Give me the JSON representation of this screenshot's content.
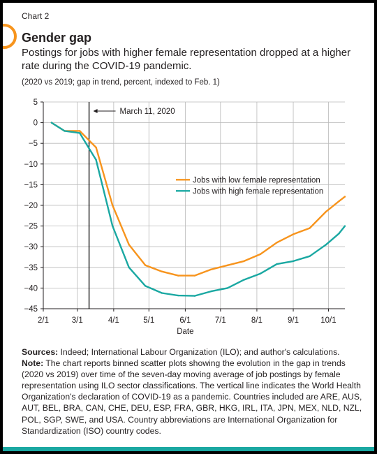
{
  "header": {
    "label": "Chart 2",
    "title": "Gender gap",
    "subtitle": "Postings for jobs with higher female representation dropped at a higher rate during the COVID-19 pandemic.",
    "unit": "(2020 vs 2019; gap in trend, percent, indexed to Feb. 1)"
  },
  "colors": {
    "low": "#f7941d",
    "high": "#1aa8a2",
    "accent_bar": "#1aa8a2"
  },
  "notes": {
    "sources_label": "Sources:",
    "sources_text": "Indeed; International Labour Organization (ILO); and author's calculations.",
    "note_label": "Note:",
    "note_text": "The chart reports binned scatter plots showing the evolution in the gap in trends (2020 vs 2019) over time of the seven-day moving average of job postings by female representation using ILO sector classifications. The vertical line indicates the World Health Organization's declaration of COVID-19 as a pandemic. Countries included are ARE, AUS, AUT, BEL, BRA, CAN, CHE, DEU, ESP, FRA, GBR, HKG, IRL, ITA, JPN, MEX, NLD, NZL, POL, SGP, SWE, and USA. Country abbreviations are International Organization for Standardization (ISO) country codes."
  },
  "chart_data": {
    "type": "line",
    "title": "Gender gap",
    "xlabel": "Date",
    "ylabel": "",
    "x_ticks": [
      {
        "date": "2020-02-01",
        "label": "2/1"
      },
      {
        "date": "2020-03-01",
        "label": "3/1"
      },
      {
        "date": "2020-04-01",
        "label": "4/1"
      },
      {
        "date": "2020-05-01",
        "label": "5/1"
      },
      {
        "date": "2020-06-01",
        "label": "6/1"
      },
      {
        "date": "2020-07-01",
        "label": "7/1"
      },
      {
        "date": "2020-08-01",
        "label": "8/1"
      },
      {
        "date": "2020-09-01",
        "label": "9/1"
      },
      {
        "date": "2020-10-01",
        "label": "10/1"
      }
    ],
    "xlim": [
      "2020-02-01",
      "2020-10-15"
    ],
    "ylim": [
      -45,
      5
    ],
    "y_ticks": [
      5,
      0,
      -5,
      -10,
      -15,
      -20,
      -25,
      -30,
      -35,
      -40,
      -45
    ],
    "grid": true,
    "legend_position": "center-right",
    "annotation": {
      "date": "2020-03-11",
      "label": "March 11, 2020"
    },
    "series": [
      {
        "name": "Jobs with low female representation",
        "color": "#f7941d",
        "points": [
          [
            "2020-02-08",
            0
          ],
          [
            "2020-02-19",
            -2
          ],
          [
            "2020-03-03",
            -2
          ],
          [
            "2020-03-17",
            -6
          ],
          [
            "2020-03-31",
            -20
          ],
          [
            "2020-04-14",
            -29.5
          ],
          [
            "2020-04-28",
            -34.5
          ],
          [
            "2020-05-12",
            -36
          ],
          [
            "2020-05-26",
            -37
          ],
          [
            "2020-06-09",
            -37
          ],
          [
            "2020-06-23",
            -35.5
          ],
          [
            "2020-07-07",
            -34.5
          ],
          [
            "2020-07-21",
            -33.5
          ],
          [
            "2020-08-04",
            -31.8
          ],
          [
            "2020-08-18",
            -29
          ],
          [
            "2020-09-01",
            -27
          ],
          [
            "2020-09-15",
            -25.5
          ],
          [
            "2020-09-29",
            -21.5
          ],
          [
            "2020-10-10",
            -19
          ],
          [
            "2020-10-15",
            -17.9
          ]
        ]
      },
      {
        "name": "Jobs with high female representation",
        "color": "#1aa8a2",
        "points": [
          [
            "2020-02-08",
            0
          ],
          [
            "2020-02-19",
            -2
          ],
          [
            "2020-03-03",
            -2.5
          ],
          [
            "2020-03-17",
            -9
          ],
          [
            "2020-03-31",
            -25
          ],
          [
            "2020-04-14",
            -35
          ],
          [
            "2020-04-28",
            -39.5
          ],
          [
            "2020-05-12",
            -41.2
          ],
          [
            "2020-05-26",
            -41.8
          ],
          [
            "2020-06-09",
            -41.9
          ],
          [
            "2020-06-23",
            -40.8
          ],
          [
            "2020-07-07",
            -40
          ],
          [
            "2020-07-21",
            -38
          ],
          [
            "2020-08-04",
            -36.5
          ],
          [
            "2020-08-18",
            -34.2
          ],
          [
            "2020-09-01",
            -33.5
          ],
          [
            "2020-09-15",
            -32.3
          ],
          [
            "2020-09-29",
            -29.5
          ],
          [
            "2020-10-10",
            -26.8
          ],
          [
            "2020-10-15",
            -25
          ]
        ]
      }
    ]
  }
}
